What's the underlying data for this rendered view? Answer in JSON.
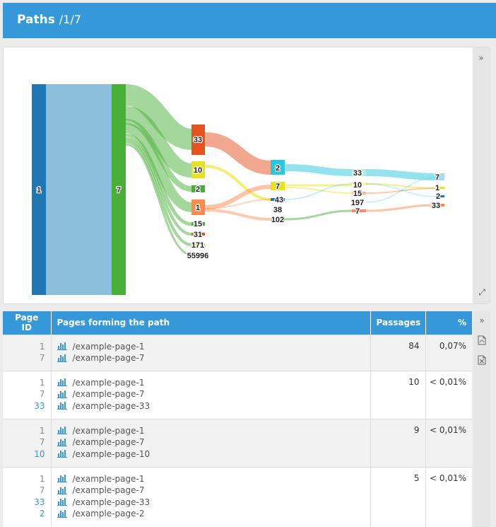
{
  "header": {
    "title": "Paths",
    "subtitle": "/1/7"
  },
  "chart_data": {
    "type": "sankey",
    "nodes": [
      "1",
      "7",
      "33",
      "10",
      "2",
      "1",
      "15",
      "31",
      "171",
      "55996",
      "2",
      "7",
      "43",
      "38",
      "102",
      "33",
      "10",
      "15",
      "197",
      "7",
      "7",
      "1",
      "2",
      "33"
    ],
    "colors": {
      "brand_blue": "#3598d8",
      "node_1": "#1f77b4",
      "node_7": "#4aaf37",
      "node_33": "#e6521e",
      "node_10": "#e9e21a",
      "node_2": "#2bc6e0",
      "node_1_b": "#ff8a4c"
    }
  },
  "chart_controls": {
    "collapse_icon": "»",
    "expand_icon": "⤢"
  },
  "table_controls": {
    "collapse_icon": "»",
    "pdf_icon": "pdf-file-icon",
    "excel_icon": "excel-file-icon"
  },
  "table": {
    "headers": {
      "id": "Page ID",
      "pages": "Pages forming the path",
      "passages": "Passages",
      "pct": "%"
    },
    "rows": [
      {
        "ids": [
          "1",
          "7"
        ],
        "pages": [
          "/example-page-1",
          "/example-page-7"
        ],
        "passages": "84",
        "pct": "0,07%"
      },
      {
        "ids": [
          "1",
          "7",
          "33"
        ],
        "pages": [
          "/example-page-1",
          "/example-page-7",
          "/example-page-33"
        ],
        "passages": "10",
        "pct": "< 0,01%"
      },
      {
        "ids": [
          "1",
          "7",
          "10"
        ],
        "pages": [
          "/example-page-1",
          "/example-page-7",
          "/example-page-10"
        ],
        "passages": "9",
        "pct": "< 0,01%"
      },
      {
        "ids": [
          "1",
          "7",
          "33",
          "2"
        ],
        "pages": [
          "/example-page-1",
          "/example-page-7",
          "/example-page-33",
          "/example-page-2"
        ],
        "passages": "5",
        "pct": "< 0,01%"
      }
    ]
  }
}
